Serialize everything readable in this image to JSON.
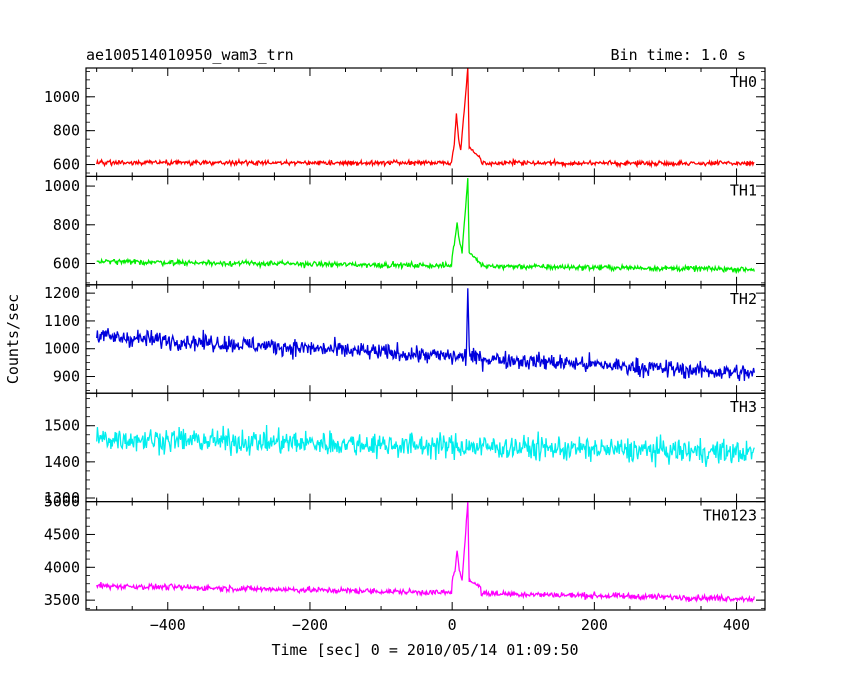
{
  "header": {
    "title": "ae100514010950_wam3_trn",
    "bin_time": "Bin time: 1.0 s"
  },
  "chart_data": {
    "type": "line",
    "xlabel": "Time [sec] 0 = 2010/05/14 01:09:50",
    "ylabel": "Counts/sec",
    "xlim": [
      -515,
      440
    ],
    "xticks": [
      -400,
      -200,
      0,
      200,
      400
    ],
    "xtick_labels": [
      "−400",
      "−200",
      "0",
      "200",
      "400"
    ],
    "x_range": [
      -500,
      425
    ],
    "bin_time_s": 1.0,
    "panels": [
      {
        "name": "TH0",
        "color": "#ff0000",
        "ylim": [
          530,
          1170
        ],
        "yticks": [
          600,
          800,
          1000
        ],
        "baseline": [
          [
            -500,
            612
          ],
          [
            425,
            607
          ]
        ],
        "noise_amp": 25,
        "features": [
          {
            "x": 0,
            "y": 640
          },
          {
            "x": 3,
            "y": 720
          },
          {
            "x": 6,
            "y": 900
          },
          {
            "x": 9,
            "y": 750
          },
          {
            "x": 12,
            "y": 680
          },
          {
            "x": 22,
            "y": 1170
          },
          {
            "x": 24,
            "y": 700
          },
          {
            "x": 40,
            "y": 640
          }
        ]
      },
      {
        "name": "TH1",
        "color": "#00ee00",
        "ylim": [
          490,
          1050
        ],
        "yticks": [
          600,
          800,
          1000
        ],
        "baseline": [
          [
            -500,
            610
          ],
          [
            425,
            570
          ]
        ],
        "noise_amp": 25,
        "features": [
          {
            "x": 0,
            "y": 640
          },
          {
            "x": 3,
            "y": 700
          },
          {
            "x": 7,
            "y": 810
          },
          {
            "x": 10,
            "y": 720
          },
          {
            "x": 14,
            "y": 660
          },
          {
            "x": 22,
            "y": 1040
          },
          {
            "x": 24,
            "y": 660
          },
          {
            "x": 40,
            "y": 600
          }
        ]
      },
      {
        "name": "TH2",
        "color": "#0000dd",
        "ylim": [
          840,
          1230
        ],
        "yticks": [
          900,
          1000,
          1100,
          1200
        ],
        "baseline": [
          [
            -500,
            1045
          ],
          [
            425,
            910
          ]
        ],
        "noise_amp": 55,
        "features": [
          {
            "x": 20,
            "y": 980
          },
          {
            "x": 22,
            "y": 1225
          },
          {
            "x": 24,
            "y": 1000
          }
        ]
      },
      {
        "name": "TH3",
        "color": "#00eeee",
        "ylim": [
          1290,
          1590
        ],
        "yticks": [
          1300,
          1400,
          1500
        ],
        "baseline": [
          [
            -500,
            1465
          ],
          [
            425,
            1425
          ]
        ],
        "noise_amp": 60,
        "features": []
      },
      {
        "name": "TH0123",
        "color": "#ff00ff",
        "ylim": [
          3350,
          5000
        ],
        "yticks": [
          3500,
          4000,
          4500,
          5000
        ],
        "baseline": [
          [
            -500,
            3720
          ],
          [
            425,
            3520
          ]
        ],
        "noise_amp": 80,
        "features": [
          {
            "x": 0,
            "y": 3800
          },
          {
            "x": 4,
            "y": 3950
          },
          {
            "x": 7,
            "y": 4250
          },
          {
            "x": 10,
            "y": 3950
          },
          {
            "x": 14,
            "y": 3800
          },
          {
            "x": 22,
            "y": 5000
          },
          {
            "x": 24,
            "y": 3800
          },
          {
            "x": 40,
            "y": 3700
          }
        ]
      }
    ]
  }
}
